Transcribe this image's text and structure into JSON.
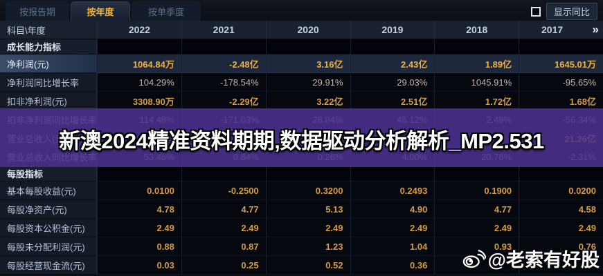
{
  "tabs": {
    "items": [
      {
        "label": "按报告期",
        "active": false
      },
      {
        "label": "按年度",
        "active": true
      },
      {
        "label": "按单季度",
        "active": false
      }
    ],
    "show_yoy_label": "显示同比"
  },
  "table": {
    "corner_label": "科目\\年度",
    "years": [
      "2022",
      "2021",
      "2020",
      "2019",
      "2018",
      "2017"
    ],
    "more_icon": "»",
    "sections": [
      {
        "title": "成长能力指标",
        "rows": [
          {
            "label": "净利润(元)",
            "style": "gold",
            "selected": true,
            "values": [
              "1064.84万",
              "-2.48亿",
              "3.16亿",
              "2.43亿",
              "1.89亿",
              "1645.01万"
            ]
          },
          {
            "label": "净利润同比增长率",
            "style": "pct",
            "selected": false,
            "values": [
              "104.29%",
              "-178.54%",
              "29.91%",
              "29.03%",
              "1045.91%",
              "-95.65%"
            ]
          },
          {
            "label": "扣非净利润(元)",
            "style": "gold",
            "selected": false,
            "values": [
              "3308.90万",
              "-2.29亿",
              "3.22亿",
              "2.51亿",
              "1.72亿",
              "1.68亿"
            ]
          },
          {
            "label": "扣非净利润同比增长率",
            "style": "pct",
            "selected": false,
            "values": [
              "114.48%",
              "-171.03%",
              "28.04%",
              "46.12%",
              "2.49%",
              "-56.34%"
            ]
          },
          {
            "label": "营业总收入(元)",
            "style": "gold",
            "selected": false,
            "values": [
              "",
              "",
              "",
              "",
              "",
              "21.26亿"
            ]
          },
          {
            "label": "营业总收入同比增长率",
            "style": "pct",
            "selected": false,
            "values": [
              "53.46%",
              "0.84%",
              "0.26%",
              "4.00%",
              "20.76%",
              "-2.31%"
            ]
          }
        ]
      },
      {
        "title": "每股指标",
        "rows": [
          {
            "label": "基本每股收益(元)",
            "style": "gold",
            "selected": false,
            "values": [
              "0.0100",
              "-0.2500",
              "0.3200",
              "0.2493",
              "0.1900",
              "0.0200"
            ]
          },
          {
            "label": "每股净资产(元)",
            "style": "gold",
            "selected": false,
            "values": [
              "4.78",
              "4.77",
              "5.13",
              "4.90",
              "4.77",
              "4.58"
            ]
          },
          {
            "label": "每股资本公积金(元)",
            "style": "gold",
            "selected": false,
            "values": [
              "2.49",
              "2.49",
              "2.49",
              "2.49",
              "2.49",
              "2.49"
            ]
          },
          {
            "label": "每股未分配利润(元)",
            "style": "gold",
            "selected": false,
            "values": [
              "0.88",
              "0.87",
              "1.23",
              "1.04",
              "0.93",
              "0.76"
            ]
          },
          {
            "label": "每股经营现金流(元)",
            "style": "gold",
            "selected": false,
            "values": [
              "0.03",
              "0.25",
              "0.52",
              "0.36",
              "",
              ""
            ]
          }
        ]
      }
    ]
  },
  "overlay": {
    "text": "新澳2024精准资料期期,数据驱动分析解析_MP2.531",
    "band_color": "#4e3292"
  },
  "watermark": {
    "text": "@老索有好股"
  },
  "colors": {
    "active_tab_text": "#f2b233",
    "value_gold": "#d89b3e",
    "percent_text": "#c9b3a5",
    "selected_row_bg": "#1d283c",
    "overlay_purple": "#4e3292",
    "header_bg": "#1a2230"
  }
}
